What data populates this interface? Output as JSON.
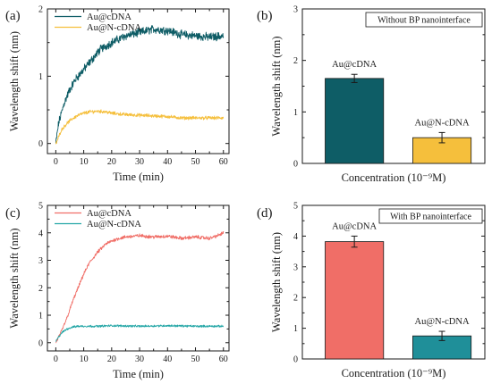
{
  "chart_data": [
    {
      "panel": "(a)",
      "type": "line",
      "xlabel": "Time (min)",
      "ylabel": "Wavelength shift (nm)",
      "xlim": [
        -3,
        62
      ],
      "ylim": [
        -0.15,
        2.0
      ],
      "xticks": [
        0,
        10,
        20,
        30,
        40,
        50,
        60
      ],
      "yticks": [
        0,
        1,
        2
      ],
      "legend": "top-left",
      "series": [
        {
          "name": "Au@cDNA",
          "color": "#0e5d66",
          "noise": 0.05,
          "x": [
            0,
            1,
            2,
            3,
            5,
            7,
            10,
            13,
            16,
            20,
            25,
            30,
            35,
            40,
            45,
            50,
            55,
            60
          ],
          "y": [
            0.0,
            0.3,
            0.45,
            0.6,
            0.8,
            0.95,
            1.1,
            1.25,
            1.4,
            1.5,
            1.6,
            1.65,
            1.7,
            1.68,
            1.62,
            1.6,
            1.58,
            1.6
          ]
        },
        {
          "name": "Au@N-cDNA",
          "color": "#f5bf3c",
          "noise": 0.02,
          "x": [
            0,
            1,
            2,
            4,
            6,
            8,
            10,
            12,
            15,
            18,
            20,
            25,
            30,
            35,
            40,
            45,
            50,
            55,
            60
          ],
          "y": [
            -0.02,
            0.1,
            0.2,
            0.3,
            0.37,
            0.42,
            0.45,
            0.47,
            0.48,
            0.47,
            0.45,
            0.43,
            0.42,
            0.41,
            0.4,
            0.38,
            0.38,
            0.38,
            0.38
          ]
        }
      ]
    },
    {
      "panel": "(b)",
      "type": "bar",
      "xlabel": "Concentration (10⁻⁹M)",
      "ylabel": "Wavelength shift (nm)",
      "ylim": [
        0,
        3
      ],
      "yticks": [
        0,
        1,
        2,
        3
      ],
      "inset_text": "Without BP nanointerface",
      "categories": [
        "Au@cDNA",
        "Au@N-cDNA"
      ],
      "values": [
        1.65,
        0.5
      ],
      "errors": [
        0.08,
        0.1
      ],
      "colors": [
        "#0e5d66",
        "#f5bf3c"
      ]
    },
    {
      "panel": "(c)",
      "type": "line",
      "xlabel": "Time (min)",
      "ylabel": "Wavelength shift (nm)",
      "xlim": [
        -3,
        62
      ],
      "ylim": [
        -0.3,
        5.0
      ],
      "xticks": [
        0,
        10,
        20,
        30,
        40,
        50,
        60
      ],
      "yticks": [
        0,
        1,
        2,
        3,
        4,
        5
      ],
      "legend": "top-left",
      "series": [
        {
          "name": "Au@cDNA",
          "color": "#f06e67",
          "noise": 0.05,
          "x": [
            0,
            2,
            4,
            6,
            8,
            10,
            12,
            15,
            18,
            20,
            22,
            25,
            30,
            35,
            40,
            45,
            50,
            55,
            58,
            60
          ],
          "y": [
            0.0,
            0.4,
            0.9,
            1.5,
            2.0,
            2.5,
            2.9,
            3.3,
            3.6,
            3.7,
            3.78,
            3.85,
            3.9,
            3.85,
            3.88,
            3.8,
            3.85,
            3.8,
            3.9,
            4.0
          ]
        },
        {
          "name": "Au@N-cDNA",
          "color": "#24a6a6",
          "noise": 0.03,
          "x": [
            0,
            1,
            2,
            4,
            6,
            8,
            10,
            15,
            20,
            30,
            40,
            50,
            60
          ],
          "y": [
            0.05,
            0.2,
            0.35,
            0.5,
            0.57,
            0.6,
            0.6,
            0.6,
            0.62,
            0.6,
            0.62,
            0.6,
            0.6
          ]
        }
      ]
    },
    {
      "panel": "(d)",
      "type": "bar",
      "xlabel": "Concentration (10⁻⁹M)",
      "ylabel": "Wavelength shift (nm)",
      "ylim": [
        0,
        5
      ],
      "yticks": [
        0,
        1,
        2,
        3,
        4,
        5
      ],
      "inset_text": "With BP nanointerface",
      "categories": [
        "Au@cDNA",
        "Au@N-cDNA"
      ],
      "values": [
        3.82,
        0.75
      ],
      "errors": [
        0.18,
        0.15
      ],
      "colors": [
        "#f06e67",
        "#1f8f99"
      ]
    }
  ]
}
